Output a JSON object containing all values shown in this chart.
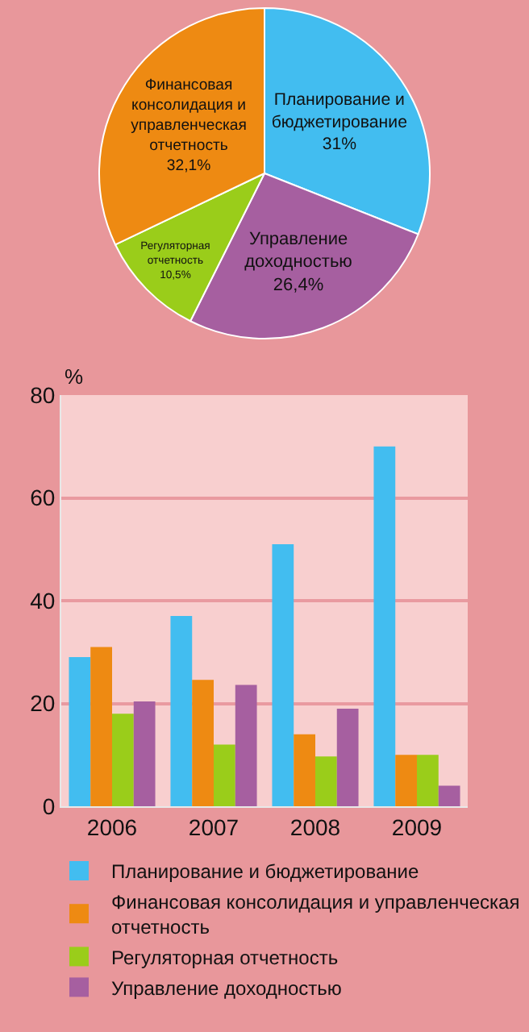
{
  "chart_data": [
    {
      "type": "pie",
      "categories": [
        "Планирование и бюджетирование",
        "Управление доходностью",
        "Регуляторная отчетность",
        "Финансовая консолидация и управленческая отчетность"
      ],
      "values": [
        31,
        26.4,
        10.5,
        32.1
      ],
      "colors": [
        "#42bdf0",
        "#a65fa0",
        "#9acd1a",
        "#ee8a12"
      ],
      "value_labels": [
        "31%",
        "26,4%",
        "10,5%",
        "32,1%"
      ],
      "legend": false
    },
    {
      "type": "bar",
      "categories": [
        "2006",
        "2007",
        "2008",
        "2009"
      ],
      "ylabel": "%",
      "ylim": [
        0,
        80
      ],
      "yticks": [
        0,
        20,
        40,
        60,
        80
      ],
      "grid": "y",
      "legend": "bottom",
      "series": [
        {
          "name": "Планирование и бюджетирование",
          "color": "#42bdf0",
          "values": [
            29,
            37,
            51,
            70
          ]
        },
        {
          "name": "Финансовая консолидация и управленческая отчетность",
          "color": "#ee8a12",
          "values": [
            31,
            24.6,
            14,
            10
          ]
        },
        {
          "name": "Регуляторная отчетность",
          "color": "#9acd1a",
          "values": [
            18,
            12,
            9.7,
            10
          ]
        },
        {
          "name": "Управление доходностью",
          "color": "#a65fa0",
          "values": [
            20.4,
            23.6,
            19,
            4
          ]
        }
      ]
    }
  ]
}
